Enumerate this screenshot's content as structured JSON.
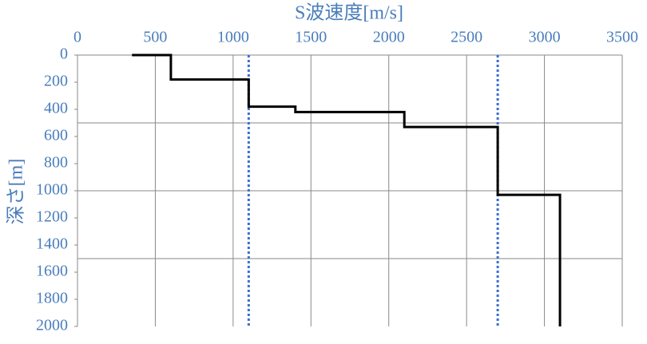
{
  "chart_data": {
    "type": "step",
    "x_label": "S波速度[m/s]",
    "y_label": "深さ[m]",
    "x": [
      350,
      600,
      600,
      1100,
      1100,
      1400,
      1400,
      2100,
      2100,
      2700,
      2700,
      3100,
      3100
    ],
    "y": [
      0,
      0,
      180,
      180,
      380,
      380,
      420,
      420,
      530,
      530,
      1030,
      1030,
      2000
    ],
    "color": "#000000",
    "reference_lines": {
      "x": [
        1100,
        2700
      ],
      "color": "#3a6fd0",
      "style": "dotted"
    },
    "xlim": [
      0,
      3500
    ],
    "xticks": [
      0,
      500,
      1000,
      1500,
      2000,
      2500,
      3000,
      3500
    ],
    "ylim": [
      0,
      2000
    ],
    "yticks": [
      0,
      200,
      400,
      600,
      800,
      1000,
      1200,
      1400,
      1600,
      1800,
      2000
    ],
    "y_inverted": true,
    "x_axis_position": "top",
    "grid": true,
    "y_grid": [
      500,
      1000,
      1500
    ],
    "label_color": "#4a7ebb"
  }
}
